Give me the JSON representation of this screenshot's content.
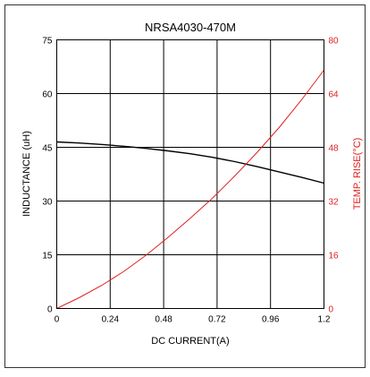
{
  "chart_data": {
    "type": "line",
    "title": "NRSA4030-470M",
    "xlabel": "DC CURRENT(A)",
    "ylabel_left": "INDUCTANCE (uH)",
    "ylabel_right": "TEMP. RISE(°C)",
    "xlim": [
      0,
      1.2
    ],
    "ylim_left": [
      0,
      75
    ],
    "ylim_right": [
      0,
      80
    ],
    "x_ticks": [
      "0",
      "0.24",
      "0.48",
      "0.72",
      "0.96",
      "1.2"
    ],
    "y_left_ticks": [
      "0",
      "15",
      "30",
      "45",
      "60",
      "75"
    ],
    "y_right_ticks": [
      "0",
      "16",
      "32",
      "48",
      "64",
      "80"
    ],
    "grid": true,
    "series": [
      {
        "axis": "left",
        "color": "#000000",
        "x": [
          0,
          0.1,
          0.2,
          0.3,
          0.4,
          0.5,
          0.6,
          0.7,
          0.8,
          0.9,
          1.0,
          1.1,
          1.2
        ],
        "y": [
          46.5,
          46.2,
          45.8,
          45.3,
          44.7,
          44.0,
          43.2,
          42.2,
          41.0,
          39.6,
          38.1,
          36.6,
          35.0
        ]
      },
      {
        "axis": "right",
        "color": "#e02020",
        "x": [
          0,
          0.1,
          0.2,
          0.3,
          0.4,
          0.5,
          0.6,
          0.7,
          0.8,
          0.9,
          1.0,
          1.1,
          1.2
        ],
        "y": [
          0,
          3.2,
          6.8,
          11.0,
          15.8,
          21.2,
          26.9,
          32.9,
          39.5,
          46.5,
          54.0,
          62.2,
          71.0
        ]
      }
    ]
  }
}
